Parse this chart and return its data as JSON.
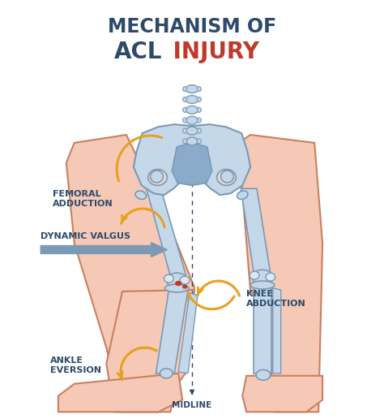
{
  "title_line1": "MECHANISM OF",
  "title_line2_acl": "ACL",
  "title_line2_injury": " INJURY",
  "title_color_dark": "#2d4a6b",
  "title_color_red": "#c0392b",
  "bg_color": "#ffffff",
  "skin_color": "#f5c9b5",
  "skin_outline": "#c88060",
  "bone_fill": "#c5d8ea",
  "bone_outline": "#7a9ab5",
  "bone_dark": "#8aabca",
  "arrow_orange": "#e8a020",
  "arrow_gray": "#7a9ab5",
  "label_color": "#2d4a6b",
  "midline_color": "#2d4a6b",
  "acl_red": "#c0392b"
}
